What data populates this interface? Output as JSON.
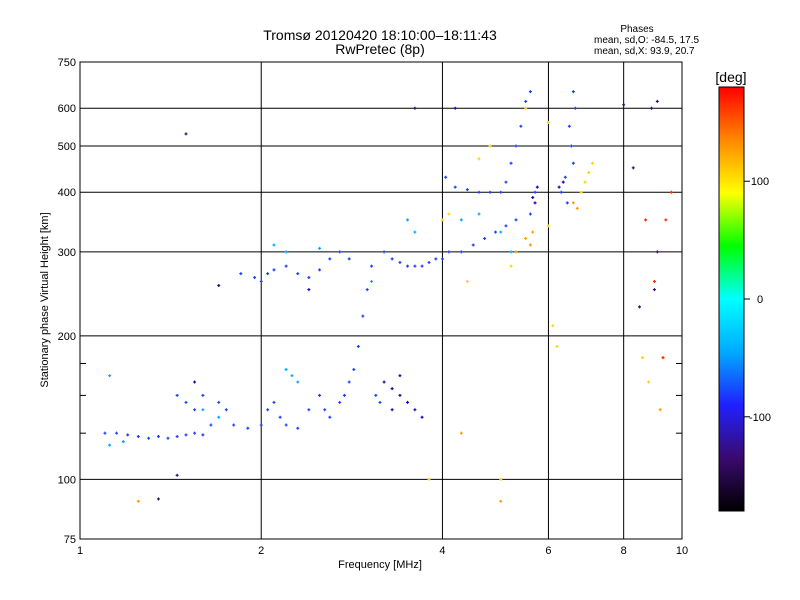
{
  "chart_data": {
    "type": "scatter",
    "title": "Tromsø 20120420 18:10:00–18:11:43",
    "subtitle": "RwPretec (8p)",
    "xlabel": "Frequency [MHz]",
    "ylabel": "Stationary phase Virtual Height [km]",
    "x_scale": "log",
    "y_scale": "log",
    "xlim": [
      1,
      10
    ],
    "ylim": [
      75,
      750
    ],
    "x_ticks": [
      1,
      2,
      4,
      6,
      8,
      10
    ],
    "x_tick_labels": [
      "1",
      "2",
      "4",
      "6",
      "8",
      "10"
    ],
    "y_ticks": [
      75,
      100,
      200,
      300,
      400,
      500,
      600,
      750
    ],
    "y_tick_labels": [
      "75",
      "100",
      "200",
      "300",
      "400",
      "500",
      "600",
      "750"
    ],
    "y_minor_ticks": [
      125,
      150,
      175
    ],
    "grid": true,
    "legend_title": "Phases",
    "stats": [
      "mean, sd,O: -84.5, 17.5",
      "mean, sd,X: 93.9, 20.7"
    ],
    "colorbar": {
      "label": "[deg]",
      "range": [
        -180,
        180
      ],
      "ticks": [
        100,
        0,
        -100
      ],
      "tick_labels": [
        "100",
        "0",
        "-100"
      ],
      "palette": [
        "#000000",
        "#3a0a6e",
        "#2020ff",
        "#00aaff",
        "#00ffff",
        "#00ff00",
        "#ffff00",
        "#ff8800",
        "#ff0000"
      ]
    },
    "series": [
      {
        "phase": -100,
        "color": "#1e40ff",
        "points": [
          [
            1.1,
            125
          ],
          [
            1.15,
            125
          ],
          [
            1.2,
            124
          ],
          [
            1.25,
            123
          ],
          [
            1.3,
            122
          ],
          [
            1.35,
            123
          ],
          [
            1.4,
            122
          ],
          [
            1.45,
            123
          ],
          [
            1.5,
            124
          ],
          [
            1.55,
            125
          ],
          [
            1.6,
            124
          ],
          [
            1.65,
            130
          ],
          [
            1.55,
            140
          ],
          [
            1.5,
            145
          ],
          [
            1.45,
            150
          ],
          [
            1.6,
            150
          ],
          [
            1.7,
            145
          ],
          [
            1.75,
            140
          ],
          [
            1.8,
            130
          ],
          [
            1.9,
            128
          ],
          [
            2.0,
            130
          ],
          [
            2.05,
            140
          ],
          [
            2.1,
            145
          ],
          [
            2.15,
            135
          ],
          [
            2.2,
            130
          ],
          [
            2.3,
            128
          ],
          [
            2.4,
            140
          ],
          [
            2.5,
            150
          ],
          [
            2.55,
            140
          ],
          [
            2.6,
            135
          ],
          [
            2.7,
            145
          ],
          [
            2.75,
            150
          ],
          [
            2.8,
            160
          ],
          [
            2.85,
            170
          ],
          [
            2.9,
            190
          ],
          [
            2.95,
            220
          ],
          [
            3.0,
            250
          ],
          [
            3.05,
            280
          ],
          [
            3.1,
            150
          ],
          [
            3.15,
            145
          ],
          [
            1.85,
            270
          ],
          [
            1.95,
            265
          ],
          [
            2.0,
            260
          ],
          [
            2.05,
            270
          ],
          [
            2.1,
            275
          ],
          [
            2.2,
            280
          ],
          [
            2.3,
            270
          ],
          [
            2.4,
            265
          ],
          [
            2.5,
            275
          ],
          [
            2.6,
            290
          ],
          [
            2.7,
            300
          ],
          [
            2.8,
            290
          ],
          [
            3.2,
            300
          ],
          [
            3.3,
            290
          ],
          [
            3.4,
            285
          ],
          [
            3.5,
            280
          ],
          [
            3.6,
            280
          ],
          [
            3.7,
            280
          ],
          [
            3.8,
            285
          ],
          [
            3.9,
            290
          ],
          [
            4.0,
            290
          ],
          [
            4.1,
            300
          ],
          [
            4.3,
            300
          ],
          [
            4.5,
            310
          ],
          [
            4.7,
            320
          ],
          [
            4.9,
            330
          ],
          [
            5.1,
            340
          ],
          [
            5.3,
            350
          ],
          [
            4.05,
            430
          ],
          [
            4.2,
            410
          ],
          [
            4.4,
            405
          ],
          [
            4.6,
            400
          ],
          [
            4.8,
            400
          ],
          [
            5.0,
            400
          ],
          [
            5.1,
            420
          ],
          [
            5.2,
            460
          ],
          [
            5.3,
            500
          ],
          [
            5.4,
            550
          ],
          [
            5.5,
            620
          ],
          [
            5.6,
            650
          ],
          [
            5.7,
            400
          ],
          [
            5.6,
            360
          ],
          [
            6.6,
            650
          ],
          [
            6.65,
            600
          ],
          [
            6.5,
            550
          ],
          [
            6.55,
            500
          ],
          [
            6.6,
            460
          ],
          [
            6.4,
            430
          ],
          [
            6.3,
            400
          ],
          [
            6.45,
            380
          ]
        ]
      },
      {
        "phase": -120,
        "color": "#2a00b0",
        "points": [
          [
            3.2,
            160
          ],
          [
            3.3,
            155
          ],
          [
            3.4,
            150
          ],
          [
            3.5,
            145
          ],
          [
            3.3,
            140
          ],
          [
            3.4,
            165
          ],
          [
            3.6,
            140
          ],
          [
            3.7,
            135
          ],
          [
            5.75,
            410
          ],
          [
            5.7,
            380
          ],
          [
            5.65,
            390
          ],
          [
            6.35,
            420
          ],
          [
            6.25,
            410
          ],
          [
            2.4,
            250
          ],
          [
            1.55,
            160
          ],
          [
            4.2,
            600
          ]
        ]
      },
      {
        "phase": -70,
        "color": "#00aaff",
        "points": [
          [
            1.12,
            118
          ],
          [
            1.18,
            120
          ],
          [
            1.6,
            140
          ],
          [
            1.7,
            135
          ],
          [
            2.1,
            310
          ],
          [
            2.2,
            300
          ],
          [
            2.5,
            305
          ],
          [
            3.5,
            350
          ],
          [
            3.6,
            330
          ],
          [
            4.3,
            350
          ],
          [
            4.6,
            360
          ],
          [
            5.0,
            330
          ],
          [
            5.2,
            300
          ],
          [
            1.12,
            165
          ],
          [
            2.3,
            160
          ],
          [
            2.2,
            170
          ],
          [
            2.25,
            165
          ],
          [
            3.05,
            260
          ]
        ]
      },
      {
        "phase": 100,
        "color": "#ffd400",
        "points": [
          [
            4.0,
            350
          ],
          [
            4.1,
            360
          ],
          [
            4.6,
            470
          ],
          [
            4.8,
            500
          ],
          [
            5.5,
            600
          ],
          [
            6.0,
            560
          ],
          [
            6.0,
            340
          ],
          [
            6.8,
            400
          ],
          [
            6.9,
            420
          ],
          [
            7.0,
            440
          ],
          [
            7.1,
            460
          ],
          [
            6.1,
            210
          ],
          [
            6.2,
            190
          ],
          [
            5.2,
            280
          ],
          [
            4.4,
            260
          ],
          [
            8.6,
            180
          ],
          [
            8.8,
            160
          ],
          [
            5.0,
            100
          ],
          [
            3.8,
            100
          ]
        ]
      },
      {
        "phase": 130,
        "color": "#ff9a00",
        "points": [
          [
            5.5,
            320
          ],
          [
            5.6,
            310
          ],
          [
            5.65,
            330
          ],
          [
            6.6,
            380
          ],
          [
            6.7,
            370
          ],
          [
            4.3,
            125
          ],
          [
            5.3,
            300
          ],
          [
            9.2,
            140
          ],
          [
            9.3,
            180
          ],
          [
            1.25,
            90
          ],
          [
            5.0,
            90
          ]
        ]
      },
      {
        "phase": 160,
        "color": "#ff2a00",
        "points": [
          [
            9.4,
            350
          ],
          [
            9.6,
            400
          ],
          [
            8.7,
            350
          ],
          [
            9.0,
            260
          ],
          [
            9.3,
            180
          ]
        ]
      },
      {
        "phase": -150,
        "color": "#3a0a6e",
        "points": [
          [
            1.5,
            530
          ],
          [
            1.7,
            255
          ],
          [
            3.6,
            600
          ],
          [
            8.3,
            450
          ],
          [
            8.5,
            230
          ],
          [
            9.1,
            300
          ],
          [
            9.0,
            250
          ],
          [
            8.9,
            600
          ],
          [
            9.1,
            620
          ],
          [
            8.0,
            610
          ],
          [
            1.35,
            91
          ],
          [
            1.45,
            102
          ]
        ]
      }
    ]
  }
}
